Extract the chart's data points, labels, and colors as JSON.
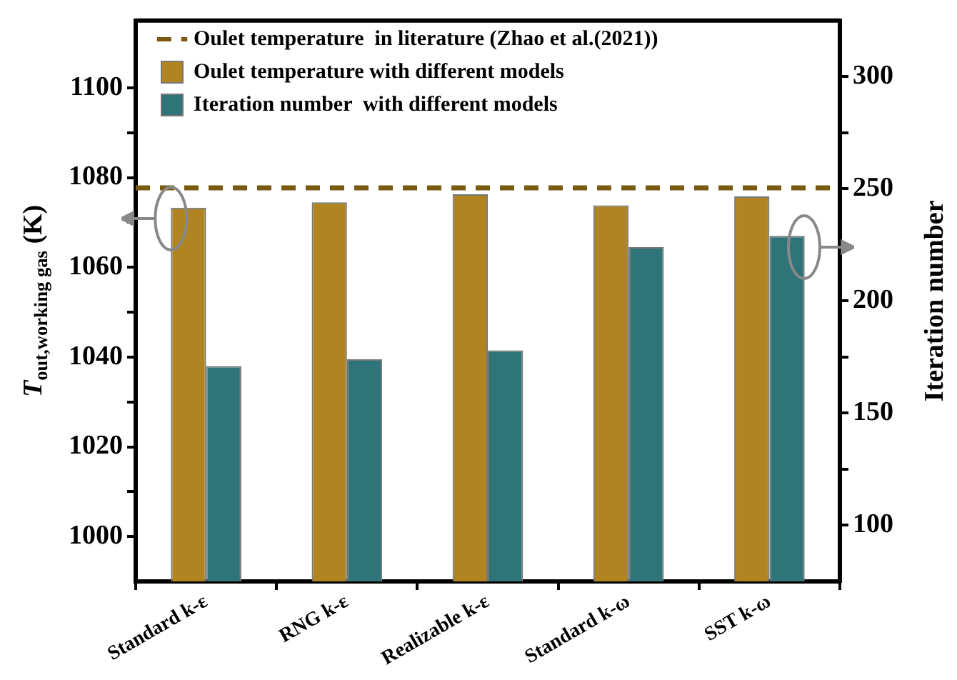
{
  "chart_data": {
    "type": "bar",
    "categories": [
      "Standard k-ε",
      "RNG k-ε",
      "Realizable k-ε",
      "Standard k-ω",
      "SST k-ω"
    ],
    "series": [
      {
        "name": "Oulet temperature with different models",
        "color": "#b08420",
        "values": [
          1073.3,
          1074.5,
          1076.3,
          1073.8,
          1075.8
        ]
      },
      {
        "name": "Iteration number  with different models",
        "color": "#2f7479",
        "axis": "y2",
        "values": [
          171,
          174,
          178,
          224,
          229
        ]
      }
    ],
    "ylabel": "T$_{out,working gas}$ (K)",
    "y2label": "Iteration number",
    "ylim": [
      990,
      1115
    ],
    "yticks": [
      1000,
      {
        "value": 1010,
        "label": null
      },
      1020,
      {
        "value": 1030,
        "label": null
      },
      1040,
      {
        "value": 1050,
        "label": null
      },
      1060,
      {
        "value": 1070,
        "label": null
      },
      1080,
      {
        "value": 1090,
        "label": null
      },
      1100
    ],
    "y2lim": [
      75,
      325
    ],
    "y2ticks": [
      100,
      {
        "value": 125,
        "label": null
      },
      150,
      {
        "value": 175,
        "label": null
      },
      200,
      {
        "value": 225,
        "label": null
      },
      250,
      {
        "value": 275,
        "label": null
      },
      300
    ],
    "ref_lines": [
      {
        "axis": "y",
        "value": 1077.7,
        "label": "Oulet temperature  in literature (Zhao et al.(2021))",
        "color": "#7a5a10",
        "line_style": "dashed"
      }
    ],
    "grid": false,
    "legend": "top left"
  }
}
